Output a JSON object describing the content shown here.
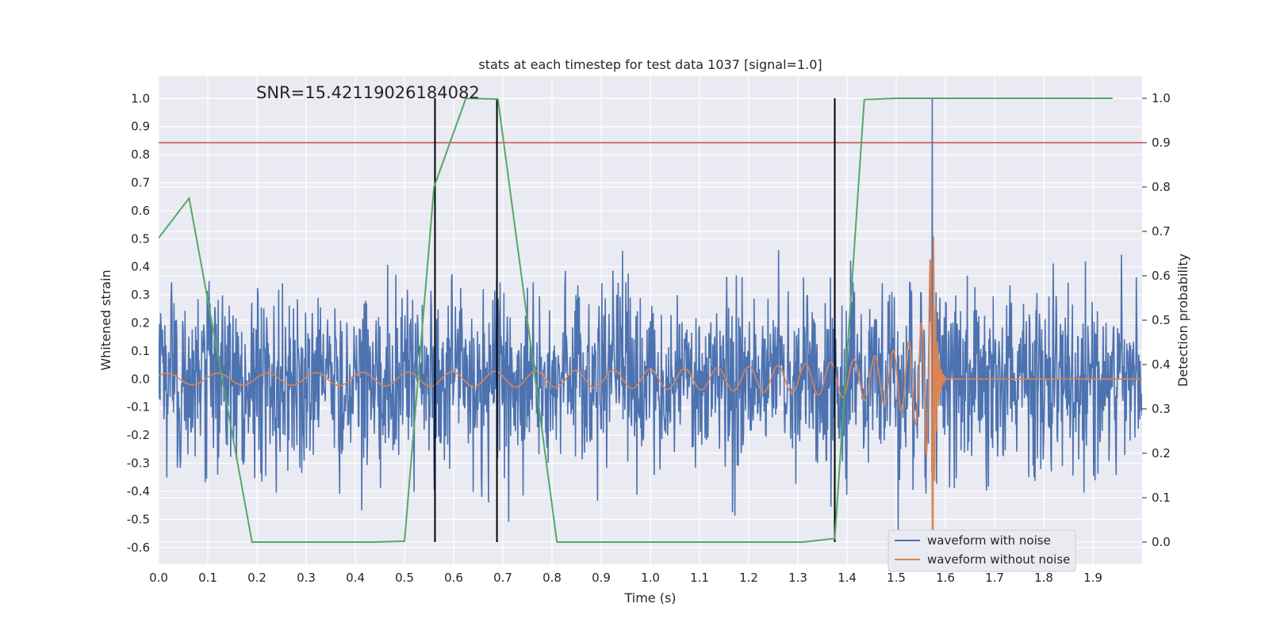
{
  "chart_data": {
    "type": "line",
    "title": "stats at each timestep for test data 1037 [signal=1.0]",
    "xlabel": "Time (s)",
    "ylabel": "Whitened strain",
    "y2label": "Detection probability",
    "annotation": "SNR=15.42119026184082",
    "xlim": [
      0.0,
      2.0
    ],
    "ylim": [
      -0.66,
      1.08
    ],
    "y2lim": [
      -0.05,
      1.05
    ],
    "x_ticks": [
      "0.0",
      "0.1",
      "0.2",
      "0.3",
      "0.4",
      "0.5",
      "0.6",
      "0.7",
      "0.8",
      "0.9",
      "1.0",
      "1.1",
      "1.2",
      "1.3",
      "1.4",
      "1.5",
      "1.6",
      "1.7",
      "1.8",
      "1.9"
    ],
    "y_ticks": [
      "-0.6",
      "-0.5",
      "-0.4",
      "-0.3",
      "-0.2",
      "-0.1",
      "0.0",
      "0.1",
      "0.2",
      "0.3",
      "0.4",
      "0.5",
      "0.6",
      "0.7",
      "0.8",
      "0.9",
      "1.0"
    ],
    "y2_ticks": [
      "0.0",
      "0.1",
      "0.2",
      "0.3",
      "0.4",
      "0.5",
      "0.6",
      "0.7",
      "0.8",
      "0.9",
      "1.0"
    ],
    "grid": true,
    "legend_position": "lower-right",
    "colors": {
      "noisy": "#4c72b0",
      "clean": "#dd8452",
      "probability": "#55a868",
      "threshold": "#c44e52",
      "markers": "#000000",
      "background": "#eaeaf2",
      "grid": "#ffffff"
    },
    "series": [
      {
        "name": "waveform with noise",
        "axis": "left",
        "values": "dense noise in [-0.5, 0.57], mean ~0; spike to 1.0 at t=1.573"
      },
      {
        "name": "waveform without noise",
        "axis": "left",
        "chirp": {
          "t_merge": 1.575,
          "amp_start": 0.02,
          "amp_peak": 0.6,
          "freq_start_hz": 25,
          "freq_end_hz": 170,
          "ringdown_end": 1.6
        }
      },
      {
        "axis": "right",
        "x": [
          0.0,
          0.062,
          0.19,
          0.25,
          0.44,
          0.5,
          0.56,
          0.625,
          0.69,
          0.81,
          1.31,
          1.375,
          1.435,
          1.5,
          1.94
        ],
        "y": [
          0.685,
          0.775,
          0.0,
          0.0,
          0.0,
          0.002,
          0.8,
          1.0,
          0.998,
          0.0,
          0.0,
          0.008,
          0.997,
          1.0,
          1.0
        ]
      }
    ],
    "threshold_y2": 0.9,
    "vertical_markers_x": [
      0.562,
      0.688,
      1.375
    ],
    "vertical_marker_range_y2": [
      0.0,
      1.0
    ],
    "legend": [
      "waveform with noise",
      "waveform without noise"
    ]
  }
}
